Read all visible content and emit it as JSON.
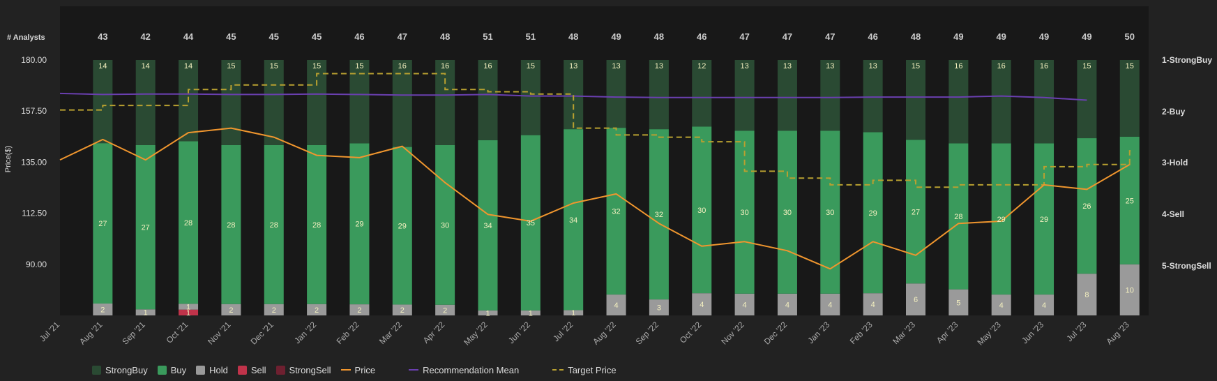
{
  "chart_data": {
    "type": "bar",
    "title": "",
    "analysts_label": "# Analysts",
    "ylabel": "Price($)",
    "ylim": [
      67.5,
      180
    ],
    "y_ticks": [
      "180.00",
      "157.50",
      "135.00",
      "112.50",
      "90.00"
    ],
    "right_axis_labels": [
      "1-StrongBuy",
      "2-Buy",
      "3-Hold",
      "4-Sell",
      "5-StrongSell"
    ],
    "x_labels": [
      "Jul '21",
      "Aug '21",
      "Sep '21",
      "Oct '21",
      "Nov '21",
      "Dec '21",
      "Jan '22",
      "Feb '22",
      "Mar '22",
      "Apr '22",
      "May '22",
      "Jun '22",
      "Jul '22",
      "Aug '22",
      "Sep '22",
      "Oct '22",
      "Nov '22",
      "Dec '22",
      "Jan '23",
      "Feb '23",
      "Mar '23",
      "Apr '23",
      "May '23",
      "Jun '23",
      "Jul '23",
      "Aug '23"
    ],
    "bar_months": [
      "Aug '21",
      "Sep '21",
      "Oct '21",
      "Nov '21",
      "Dec '21",
      "Jan '22",
      "Feb '22",
      "Mar '22",
      "Apr '22",
      "May '22",
      "Jun '22",
      "Jul '22",
      "Aug '22",
      "Sep '22",
      "Oct '22",
      "Nov '22",
      "Dec '22",
      "Jan '23",
      "Feb '23",
      "Mar '23",
      "Apr '23",
      "May '23",
      "Jun '23",
      "Jul '23",
      "Aug '23"
    ],
    "analysts": [
      43,
      42,
      44,
      45,
      45,
      45,
      46,
      47,
      48,
      51,
      51,
      48,
      49,
      48,
      46,
      47,
      47,
      47,
      46,
      48,
      49,
      49,
      49,
      49,
      50
    ],
    "series": [
      {
        "name": "StrongBuy",
        "color": "#2a4a33",
        "values": [
          14,
          14,
          14,
          15,
          15,
          15,
          15,
          16,
          16,
          16,
          15,
          13,
          13,
          13,
          12,
          13,
          13,
          13,
          13,
          15,
          16,
          16,
          16,
          15,
          15
        ]
      },
      {
        "name": "Buy",
        "color": "#3a9a5c",
        "values": [
          27,
          27,
          28,
          28,
          28,
          28,
          29,
          29,
          30,
          34,
          35,
          34,
          32,
          32,
          30,
          30,
          30,
          30,
          29,
          27,
          28,
          29,
          29,
          26,
          25
        ]
      },
      {
        "name": "Hold",
        "color": "#9a9a9a",
        "values": [
          2,
          1,
          1,
          2,
          2,
          2,
          2,
          2,
          2,
          1,
          1,
          1,
          4,
          3,
          4,
          4,
          4,
          4,
          4,
          6,
          5,
          4,
          4,
          8,
          10
        ]
      },
      {
        "name": "Sell",
        "color": "#c0334a",
        "values": [
          0,
          0,
          1,
          0,
          0,
          0,
          0,
          0,
          0,
          0,
          0,
          0,
          0,
          0,
          0,
          0,
          0,
          0,
          0,
          0,
          0,
          0,
          0,
          0,
          0
        ]
      },
      {
        "name": "StrongSell",
        "color": "#6e2030",
        "values": [
          0,
          0,
          0,
          0,
          0,
          0,
          0,
          0,
          0,
          0,
          0,
          0,
          0,
          0,
          0,
          0,
          0,
          0,
          0,
          0,
          0,
          0,
          0,
          0,
          0
        ]
      }
    ],
    "price": {
      "name": "Price",
      "color": "#f0962e",
      "x": [
        "Jul '21",
        "Aug '21",
        "Sep '21",
        "Oct '21",
        "Nov '21",
        "Dec '21",
        "Jan '22",
        "Feb '22",
        "Mar '22",
        "Apr '22",
        "May '22",
        "Jun '22",
        "Jul '22",
        "Aug '22",
        "Sep '22",
        "Oct '22",
        "Nov '22",
        "Dec '22",
        "Jan '23",
        "Feb '23",
        "Mar '23",
        "Apr '23",
        "May '23",
        "Jun '23",
        "Jul '23",
        "Aug '23"
      ],
      "values": [
        136,
        145,
        136,
        148,
        150,
        146,
        138,
        137,
        142,
        126,
        112,
        109,
        117,
        121,
        108,
        98,
        100,
        96,
        88,
        100,
        94,
        108,
        109,
        125,
        123,
        134
      ]
    },
    "recommendation_mean": {
      "name": "Recommendation Mean",
      "color": "#6a3fb0",
      "values": [
        1.65,
        1.67,
        1.66,
        1.66,
        1.67,
        1.67,
        1.66,
        1.67,
        1.68,
        1.68,
        1.67,
        1.7,
        1.7,
        1.72,
        1.73,
        1.73,
        1.73,
        1.73,
        1.73,
        1.72,
        1.72,
        1.72,
        1.7,
        1.73,
        1.78
      ]
    },
    "target_price": {
      "name": "Target Price",
      "color": "#b8a030",
      "x": [
        "Jul '21",
        "Aug '21",
        "Sep '21",
        "Oct '21",
        "Nov '21",
        "Dec '21",
        "Jan '22",
        "Feb '22",
        "Mar '22",
        "Apr '22",
        "May '22",
        "Jun '22",
        "Jul '22",
        "Aug '22",
        "Sep '22",
        "Oct '22",
        "Nov '22",
        "Dec '22",
        "Jan '23",
        "Feb '23",
        "Mar '23",
        "Apr '23",
        "May '23",
        "Jun '23",
        "Jul '23",
        "Aug '23"
      ],
      "values": [
        158,
        160,
        160,
        167,
        169,
        169,
        174,
        174,
        174,
        167,
        166,
        165,
        150,
        147,
        146,
        144,
        131,
        128,
        125,
        127,
        124,
        125,
        125,
        133,
        134,
        140
      ]
    },
    "legend": [
      "StrongBuy",
      "Buy",
      "Hold",
      "Sell",
      "StrongSell",
      "Price",
      "Recommendation Mean",
      "Target Price"
    ],
    "legend_position": "bottom-left",
    "grid": false
  }
}
